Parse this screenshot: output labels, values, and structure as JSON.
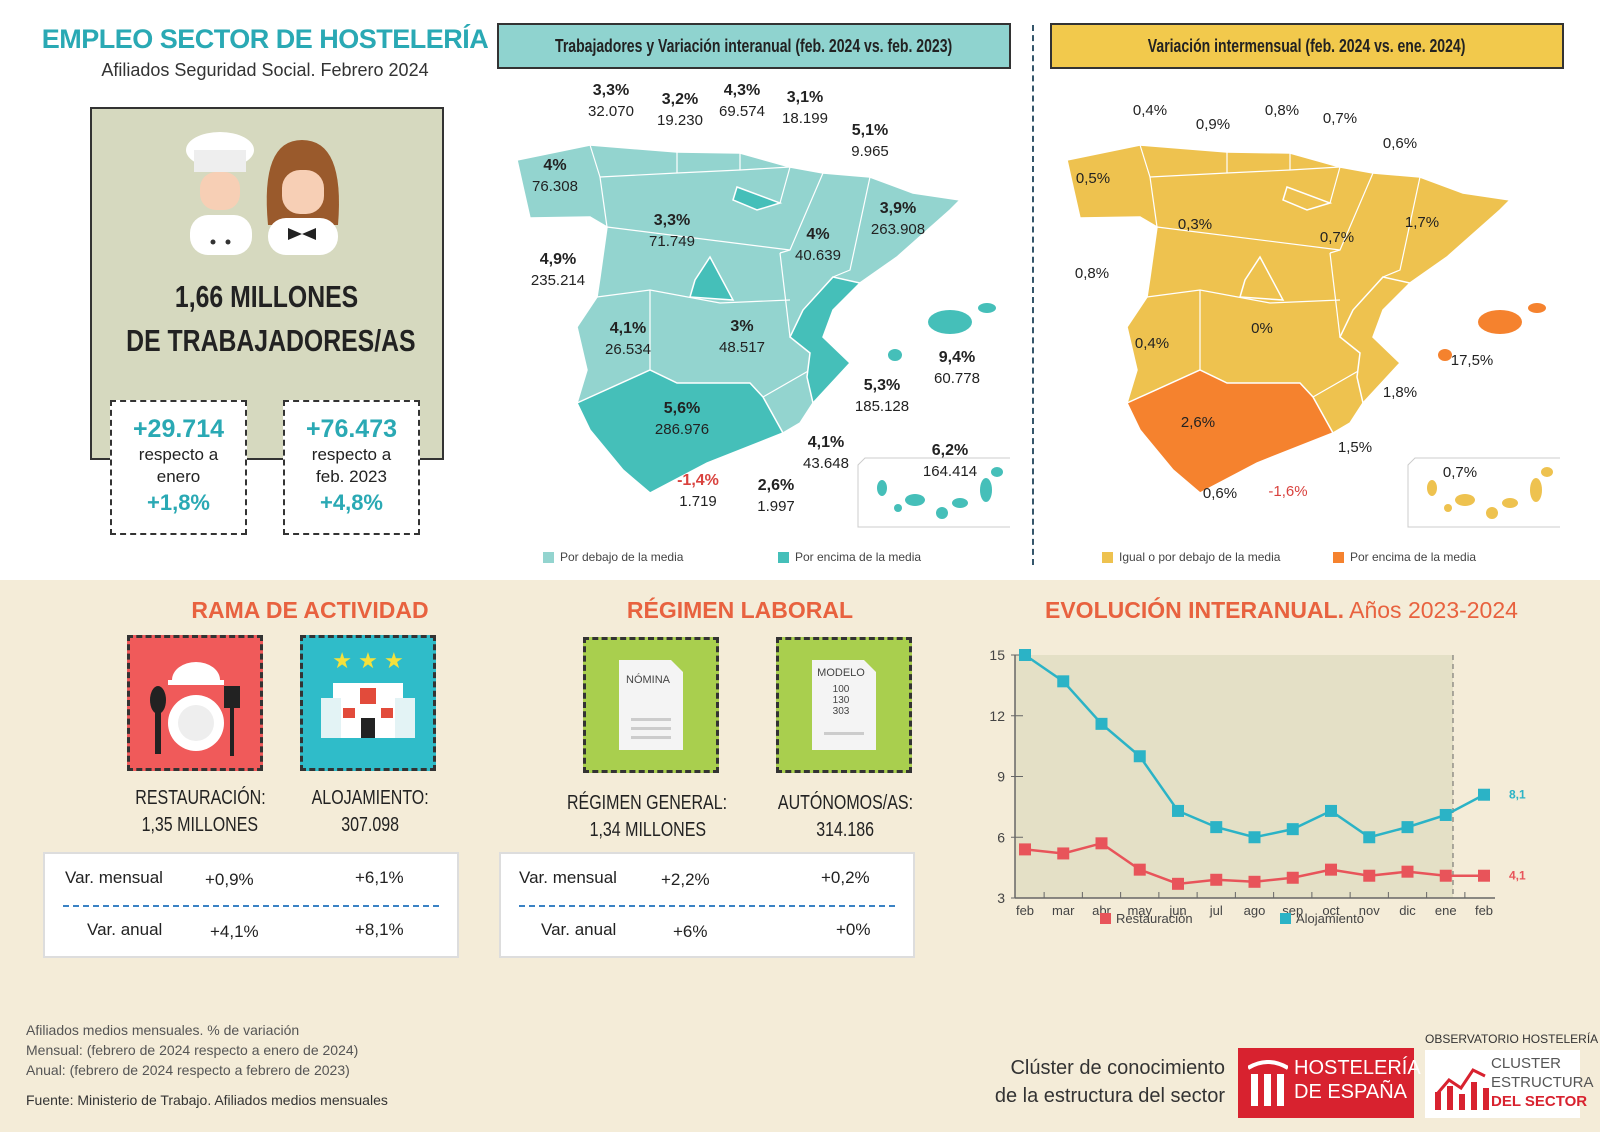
{
  "header": {
    "title": "EMPLEO SECTOR DE HOSTELERÍA",
    "subtitle": "Afiliados Seguridad Social. Febrero 2024"
  },
  "summary": {
    "total": "1,66 MILLONES",
    "total_line2": "DE TRABAJADORES/AS",
    "monthly": {
      "value": "+29.714",
      "label1": "respecto a",
      "label2": "enero",
      "pct": "+1,8%"
    },
    "annual": {
      "value": "+76.473",
      "label1": "respecto a",
      "label2": "feb. 2023",
      "pct": "+4,8%"
    }
  },
  "map1": {
    "title": "Trabajadores y Variación interanual (feb. 2024 vs. feb. 2023)",
    "colors": {
      "below": "#93d4cf",
      "above": "#45bfb9"
    },
    "legend_below": "Por debajo de la media",
    "legend_above": "Por encima de la media",
    "labels": [
      {
        "pct": "3,3%",
        "value": "32.070"
      },
      {
        "pct": "3,2%",
        "value": "19.230"
      },
      {
        "pct": "4,3%",
        "value": "69.574"
      },
      {
        "pct": "3,1%",
        "value": "18.199"
      },
      {
        "pct": "5,1%",
        "value": "9.965"
      },
      {
        "pct": "4%",
        "value": "76.308"
      },
      {
        "pct": "3,3%",
        "value": "71.749"
      },
      {
        "pct": "4,9%",
        "value": "235.214"
      },
      {
        "pct": "4%",
        "value": "40.639"
      },
      {
        "pct": "3,9%",
        "value": "263.908"
      },
      {
        "pct": "4,1%",
        "value": "26.534"
      },
      {
        "pct": "3%",
        "value": "48.517"
      },
      {
        "pct": "9,4%",
        "value": "60.778"
      },
      {
        "pct": "5,3%",
        "value": "185.128"
      },
      {
        "pct": "5,6%",
        "value": "286.976"
      },
      {
        "pct": "4,1%",
        "value": "43.648"
      },
      {
        "pct": "6,2%",
        "value": "164.414"
      },
      {
        "pct": "-1,4%",
        "value": "1.719"
      },
      {
        "pct": "2,6%",
        "value": "1.997"
      }
    ]
  },
  "map2": {
    "title": "Variación intermensual (feb. 2024 vs. ene. 2024)",
    "colors": {
      "below": "#eec24f",
      "above": "#f5822e"
    },
    "legend_below": "Igual o por debajo de la media",
    "legend_above": "Por encima de la media",
    "labels": [
      "0,4%",
      "0,9%",
      "0,8%",
      "0,7%",
      "0,6%",
      "0,5%",
      "0,3%",
      "0,7%",
      "1,7%",
      "0,8%",
      "0,4%",
      "0%",
      "17,5%",
      "1,8%",
      "2,6%",
      "1,5%",
      "0,6%",
      "-1,6%",
      "0,7%"
    ]
  },
  "rama": {
    "title": "RAMA DE ACTIVIDAD",
    "restauracion": {
      "label": "RESTAURACIÓN:",
      "value": "1,35 MILLONES"
    },
    "alojamiento": {
      "label": "ALOJAMIENTO:",
      "value": "307.098"
    },
    "table": {
      "mensual_label": "Var. mensual",
      "anual_label": "Var. anual",
      "mensual": [
        "+0,9%",
        "+6,1%"
      ],
      "anual": [
        "+4,1%",
        "+8,1%"
      ]
    }
  },
  "regimen": {
    "title": "RÉGIMEN LABORAL",
    "nomina_icon_text": "NÓMINA",
    "modelo_icon_text": "MODELO",
    "modelo_numbers": [
      "100",
      "130",
      "303"
    ],
    "general": {
      "label": "RÉGIMEN GENERAL:",
      "value": "1,34 MILLONES"
    },
    "autonomos": {
      "label": "AUTÓNOMOS/AS:",
      "value": "314.186"
    },
    "table": {
      "mensual_label": "Var. mensual",
      "anual_label": "Var. anual",
      "mensual": [
        "+2,2%",
        "+0,2%"
      ],
      "anual": [
        "+6%",
        "+0%"
      ]
    }
  },
  "chart_data": {
    "type": "line",
    "title": "EVOLUCIÓN INTERANUAL.",
    "subtitle": "Años 2023-2024",
    "categories": [
      "feb",
      "mar",
      "abr",
      "may",
      "jun",
      "jul",
      "ago",
      "sep",
      "oct",
      "nov",
      "dic",
      "ene",
      "feb"
    ],
    "yticks": [
      3,
      6,
      9,
      12,
      15
    ],
    "ylim": [
      3,
      15
    ],
    "legend": "bottom",
    "series": [
      {
        "name": "Restauración",
        "color": "#e8545a",
        "values": [
          5.4,
          5.2,
          5.7,
          4.4,
          3.7,
          3.9,
          3.8,
          4.0,
          4.4,
          4.1,
          4.3,
          4.1,
          4.1
        ],
        "end_label": "4,1"
      },
      {
        "name": "Alojamiento",
        "color": "#2bb3c6",
        "values": [
          15,
          13.7,
          11.6,
          10,
          7.3,
          6.5,
          6.0,
          6.4,
          7.3,
          6.0,
          6.5,
          7.1,
          8.1
        ],
        "end_label": "8,1"
      }
    ]
  },
  "footer": {
    "note1": "Afiliados medios mensuales. % de variación",
    "note2": "Mensual: (febrero de 2024 respecto a enero de 2024)",
    "note3": "Anual: (febrero de 2024 respecto a febrero de 2023)",
    "source": "Fuente: Ministerio de Trabajo. Afiliados medios mensuales",
    "cluster1": "Clúster de conocimiento",
    "cluster2": "de la estructura del sector",
    "logo1_line1": "HOSTELERÍA",
    "logo1_line2": "DE ESPAÑA",
    "observatorio": "OBSERVATORIO HOSTELERÍA",
    "logo2_line1": "CLUSTER",
    "logo2_line2": "ESTRUCTURA",
    "logo2_line3": "DEL SECTOR"
  }
}
